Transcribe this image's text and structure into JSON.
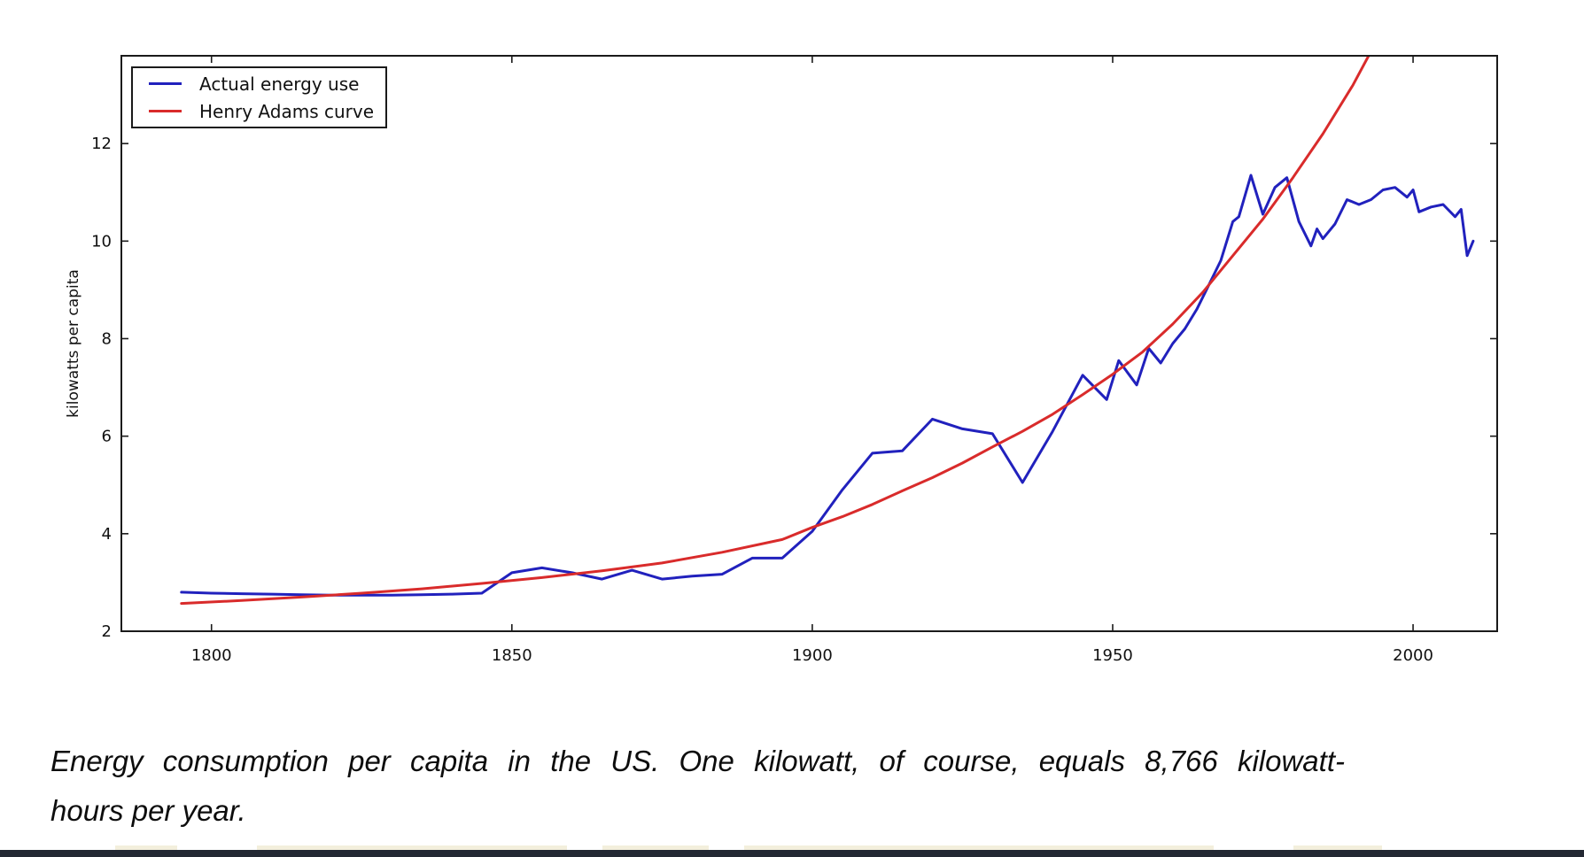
{
  "page": {
    "background": "#ffffff",
    "bottom_bar_color": "#232833"
  },
  "chart_data": {
    "type": "line",
    "title": "",
    "xlabel": "",
    "ylabel": "kilowatts per capita",
    "xlim": [
      1785,
      2014
    ],
    "ylim": [
      2,
      13.8
    ],
    "xticks": [
      1800,
      1850,
      1900,
      1950,
      2000
    ],
    "yticks": [
      2,
      4,
      6,
      8,
      10,
      12
    ],
    "grid": false,
    "legend_position": "upper-left",
    "frame_color": "#1a1a1a",
    "series": [
      {
        "name": "Actual energy use",
        "color": "#2121bd",
        "points": [
          [
            1795,
            2.8
          ],
          [
            1800,
            2.78
          ],
          [
            1805,
            2.77
          ],
          [
            1810,
            2.76
          ],
          [
            1815,
            2.75
          ],
          [
            1820,
            2.74
          ],
          [
            1825,
            2.74
          ],
          [
            1830,
            2.74
          ],
          [
            1835,
            2.75
          ],
          [
            1840,
            2.76
          ],
          [
            1845,
            2.78
          ],
          [
            1850,
            3.2
          ],
          [
            1855,
            3.3
          ],
          [
            1860,
            3.2
          ],
          [
            1865,
            3.07
          ],
          [
            1870,
            3.25
          ],
          [
            1875,
            3.07
          ],
          [
            1880,
            3.13
          ],
          [
            1885,
            3.17
          ],
          [
            1890,
            3.5
          ],
          [
            1895,
            3.5
          ],
          [
            1900,
            4.05
          ],
          [
            1905,
            4.9
          ],
          [
            1910,
            5.65
          ],
          [
            1915,
            5.7
          ],
          [
            1920,
            6.35
          ],
          [
            1925,
            6.15
          ],
          [
            1930,
            6.05
          ],
          [
            1935,
            5.05
          ],
          [
            1940,
            6.1
          ],
          [
            1945,
            7.25
          ],
          [
            1947,
            7.0
          ],
          [
            1949,
            6.75
          ],
          [
            1951,
            7.55
          ],
          [
            1954,
            7.05
          ],
          [
            1956,
            7.8
          ],
          [
            1958,
            7.5
          ],
          [
            1960,
            7.9
          ],
          [
            1962,
            8.2
          ],
          [
            1964,
            8.6
          ],
          [
            1966,
            9.1
          ],
          [
            1968,
            9.6
          ],
          [
            1970,
            10.4
          ],
          [
            1971,
            10.5
          ],
          [
            1973,
            11.35
          ],
          [
            1975,
            10.55
          ],
          [
            1977,
            11.1
          ],
          [
            1979,
            11.3
          ],
          [
            1981,
            10.4
          ],
          [
            1983,
            9.9
          ],
          [
            1984,
            10.25
          ],
          [
            1985,
            10.05
          ],
          [
            1987,
            10.35
          ],
          [
            1989,
            10.85
          ],
          [
            1991,
            10.75
          ],
          [
            1993,
            10.85
          ],
          [
            1995,
            11.05
          ],
          [
            1997,
            11.1
          ],
          [
            1999,
            10.9
          ],
          [
            2000,
            11.05
          ],
          [
            2001,
            10.6
          ],
          [
            2003,
            10.7
          ],
          [
            2005,
            10.75
          ],
          [
            2007,
            10.5
          ],
          [
            2008,
            10.65
          ],
          [
            2009,
            9.7
          ],
          [
            2010,
            10.0
          ]
        ]
      },
      {
        "name": "Henry Adams curve",
        "color": "#d92b2b",
        "points": [
          [
            1795,
            2.57
          ],
          [
            1805,
            2.63
          ],
          [
            1815,
            2.7
          ],
          [
            1825,
            2.78
          ],
          [
            1835,
            2.87
          ],
          [
            1845,
            2.98
          ],
          [
            1855,
            3.1
          ],
          [
            1865,
            3.24
          ],
          [
            1875,
            3.4
          ],
          [
            1885,
            3.62
          ],
          [
            1895,
            3.88
          ],
          [
            1900,
            4.13
          ],
          [
            1905,
            4.35
          ],
          [
            1910,
            4.6
          ],
          [
            1915,
            4.88
          ],
          [
            1920,
            5.15
          ],
          [
            1925,
            5.45
          ],
          [
            1930,
            5.78
          ],
          [
            1935,
            6.1
          ],
          [
            1940,
            6.45
          ],
          [
            1945,
            6.85
          ],
          [
            1950,
            7.27
          ],
          [
            1955,
            7.73
          ],
          [
            1960,
            8.3
          ],
          [
            1965,
            8.95
          ],
          [
            1970,
            9.7
          ],
          [
            1975,
            10.45
          ],
          [
            1980,
            11.3
          ],
          [
            1985,
            12.2
          ],
          [
            1990,
            13.2
          ],
          [
            1995,
            14.35
          ]
        ]
      }
    ]
  },
  "caption": {
    "text": "Energy consumption per capita in the US. One kilowatt, of course, equals 8,766 kilowatt-hours per year.",
    "line1": "Energy consumption per capita in the US. One kilowatt, of course, equals 8,766 kilowatt-",
    "line2": "hours per year."
  }
}
